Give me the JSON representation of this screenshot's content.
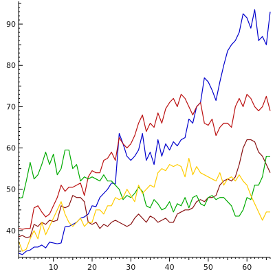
{
  "chart_data": {
    "type": "line",
    "title": "",
    "xlabel": "",
    "ylabel": "",
    "xlim": [
      1,
      66
    ],
    "ylim": [
      33.5,
      95
    ],
    "grid": false,
    "legend": "none",
    "x_ticks": [
      10,
      20,
      30,
      40,
      50,
      60
    ],
    "y_ticks": [
      40,
      50,
      60,
      70,
      80,
      90
    ],
    "x_tick_labels": [
      "10",
      "20",
      "30",
      "40",
      "50",
      "60"
    ],
    "y_tick_labels": [
      "40",
      "50",
      "60",
      "70",
      "80",
      "90"
    ],
    "x": [
      1,
      2,
      3,
      4,
      5,
      6,
      7,
      8,
      9,
      10,
      11,
      12,
      13,
      14,
      15,
      16,
      17,
      18,
      19,
      20,
      21,
      22,
      23,
      24,
      25,
      26,
      27,
      28,
      29,
      30,
      31,
      32,
      33,
      34,
      35,
      36,
      37,
      38,
      39,
      40,
      41,
      42,
      43,
      44,
      45,
      46,
      47,
      48,
      49,
      50,
      51,
      52,
      53,
      54,
      55,
      56,
      57,
      58,
      59,
      60,
      61,
      62,
      63,
      64,
      65,
      66
    ],
    "series": [
      {
        "color": "#0000cc",
        "values": [
          34.5,
          34.2,
          35.0,
          35.3,
          36.0,
          36.0,
          36.5,
          35.8,
          37.2,
          37.0,
          36.8,
          37.0,
          40.9,
          41.0,
          41.5,
          42.0,
          43.0,
          43.3,
          44.0,
          46.0,
          45.8,
          48.0,
          49.0,
          50.0,
          51.5,
          51.3,
          63.5,
          61.0,
          58.0,
          57.0,
          58.0,
          59.5,
          63.5,
          57.0,
          59.0,
          56.0,
          62.0,
          58.0,
          61.0,
          59.5,
          61.5,
          60.5,
          62.0,
          62.5,
          67.0,
          66.0,
          70.0,
          71.0,
          77.0,
          76.0,
          74.0,
          71.5,
          76.0,
          80.0,
          83.5,
          85.0,
          86.0,
          88.0,
          92.5,
          91.5,
          89.0,
          93.5,
          86.0,
          87.0,
          85.0,
          93.0
        ]
      },
      {
        "color": "#bb1111",
        "values": [
          40.5,
          40.3,
          40.5,
          40.5,
          45.5,
          46.0,
          44.5,
          43.3,
          44.0,
          46.0,
          48.0,
          51.0,
          49.5,
          50.5,
          50.5,
          51.0,
          51.5,
          48.5,
          53.0,
          54.5,
          54.0,
          54.0,
          57.0,
          57.5,
          59.0,
          57.0,
          62.5,
          61.0,
          60.0,
          61.0,
          63.0,
          66.0,
          68.0,
          64.0,
          66.0,
          65.0,
          68.5,
          66.0,
          69.5,
          71.0,
          72.0,
          70.0,
          73.0,
          72.0,
          70.0,
          68.0,
          70.0,
          71.0,
          66.0,
          65.5,
          67.0,
          63.0,
          65.0,
          66.0,
          66.0,
          65.0,
          70.0,
          72.0,
          70.0,
          73.0,
          72.0,
          70.0,
          69.0,
          70.0,
          72.5,
          69.0
        ]
      },
      {
        "color": "#881111",
        "values": [
          38.5,
          38.8,
          38.3,
          38.5,
          41.5,
          41.0,
          42.0,
          41.5,
          42.5,
          42.2,
          42.5,
          46.0,
          45.5,
          46.0,
          48.5,
          48.0,
          48.0,
          47.0,
          42.0,
          41.5,
          42.0,
          40.5,
          41.5,
          41.0,
          42.0,
          42.5,
          42.0,
          41.5,
          41.0,
          41.5,
          43.0,
          44.0,
          43.0,
          42.0,
          43.5,
          43.0,
          42.0,
          42.5,
          43.0,
          42.0,
          42.0,
          44.0,
          44.5,
          45.0,
          45.0,
          45.5,
          47.0,
          47.5,
          47.0,
          48.0,
          48.0,
          48.5,
          51.0,
          52.0,
          52.5,
          52.0,
          53.0,
          56.0,
          60.0,
          62.0,
          62.0,
          61.5,
          59.0,
          58.0,
          56.0,
          54.0
        ]
      },
      {
        "color": "#00aa00",
        "values": [
          47.8,
          48.0,
          52.0,
          56.5,
          52.5,
          53.5,
          56.0,
          59.0,
          56.0,
          58.5,
          53.5,
          55.0,
          59.5,
          59.5,
          55.0,
          56.0,
          52.0,
          53.0,
          52.5,
          53.0,
          52.5,
          52.0,
          53.5,
          52.0,
          52.0,
          51.0,
          50.0,
          47.5,
          48.5,
          48.0,
          49.0,
          50.5,
          49.5,
          46.0,
          45.5,
          47.5,
          46.5,
          45.0,
          45.5,
          47.0,
          44.5,
          46.5,
          46.0,
          48.0,
          45.5,
          48.0,
          48.5,
          46.5,
          46.0,
          48.0,
          48.5,
          47.5,
          48.0,
          48.0,
          47.0,
          46.0,
          43.5,
          43.5,
          45.0,
          48.0,
          47.5,
          51.0,
          51.0,
          53.0,
          58.0,
          58.0
        ]
      },
      {
        "color": "#ffcc00",
        "values": [
          37.5,
          35.0,
          35.5,
          38.0,
          40.0,
          38.0,
          42.0,
          39.0,
          41.0,
          43.0,
          45.0,
          47.0,
          44.0,
          42.0,
          41.0,
          42.0,
          43.0,
          41.0,
          42.0,
          42.0,
          45.0,
          45.0,
          44.0,
          46.0,
          46.0,
          48.0,
          47.5,
          48.0,
          50.0,
          48.5,
          47.0,
          51.0,
          49.0,
          50.0,
          51.0,
          50.5,
          54.0,
          55.0,
          54.5,
          56.0,
          55.5,
          56.0,
          55.5,
          53.0,
          57.5,
          53.5,
          55.5,
          54.0,
          53.5,
          53.0,
          52.5,
          52.0,
          54.0,
          51.0,
          52.5,
          53.0,
          52.0,
          53.5,
          52.0,
          51.0,
          48.5,
          46.5,
          44.5,
          42.5,
          44.5,
          44.5
        ]
      }
    ]
  }
}
